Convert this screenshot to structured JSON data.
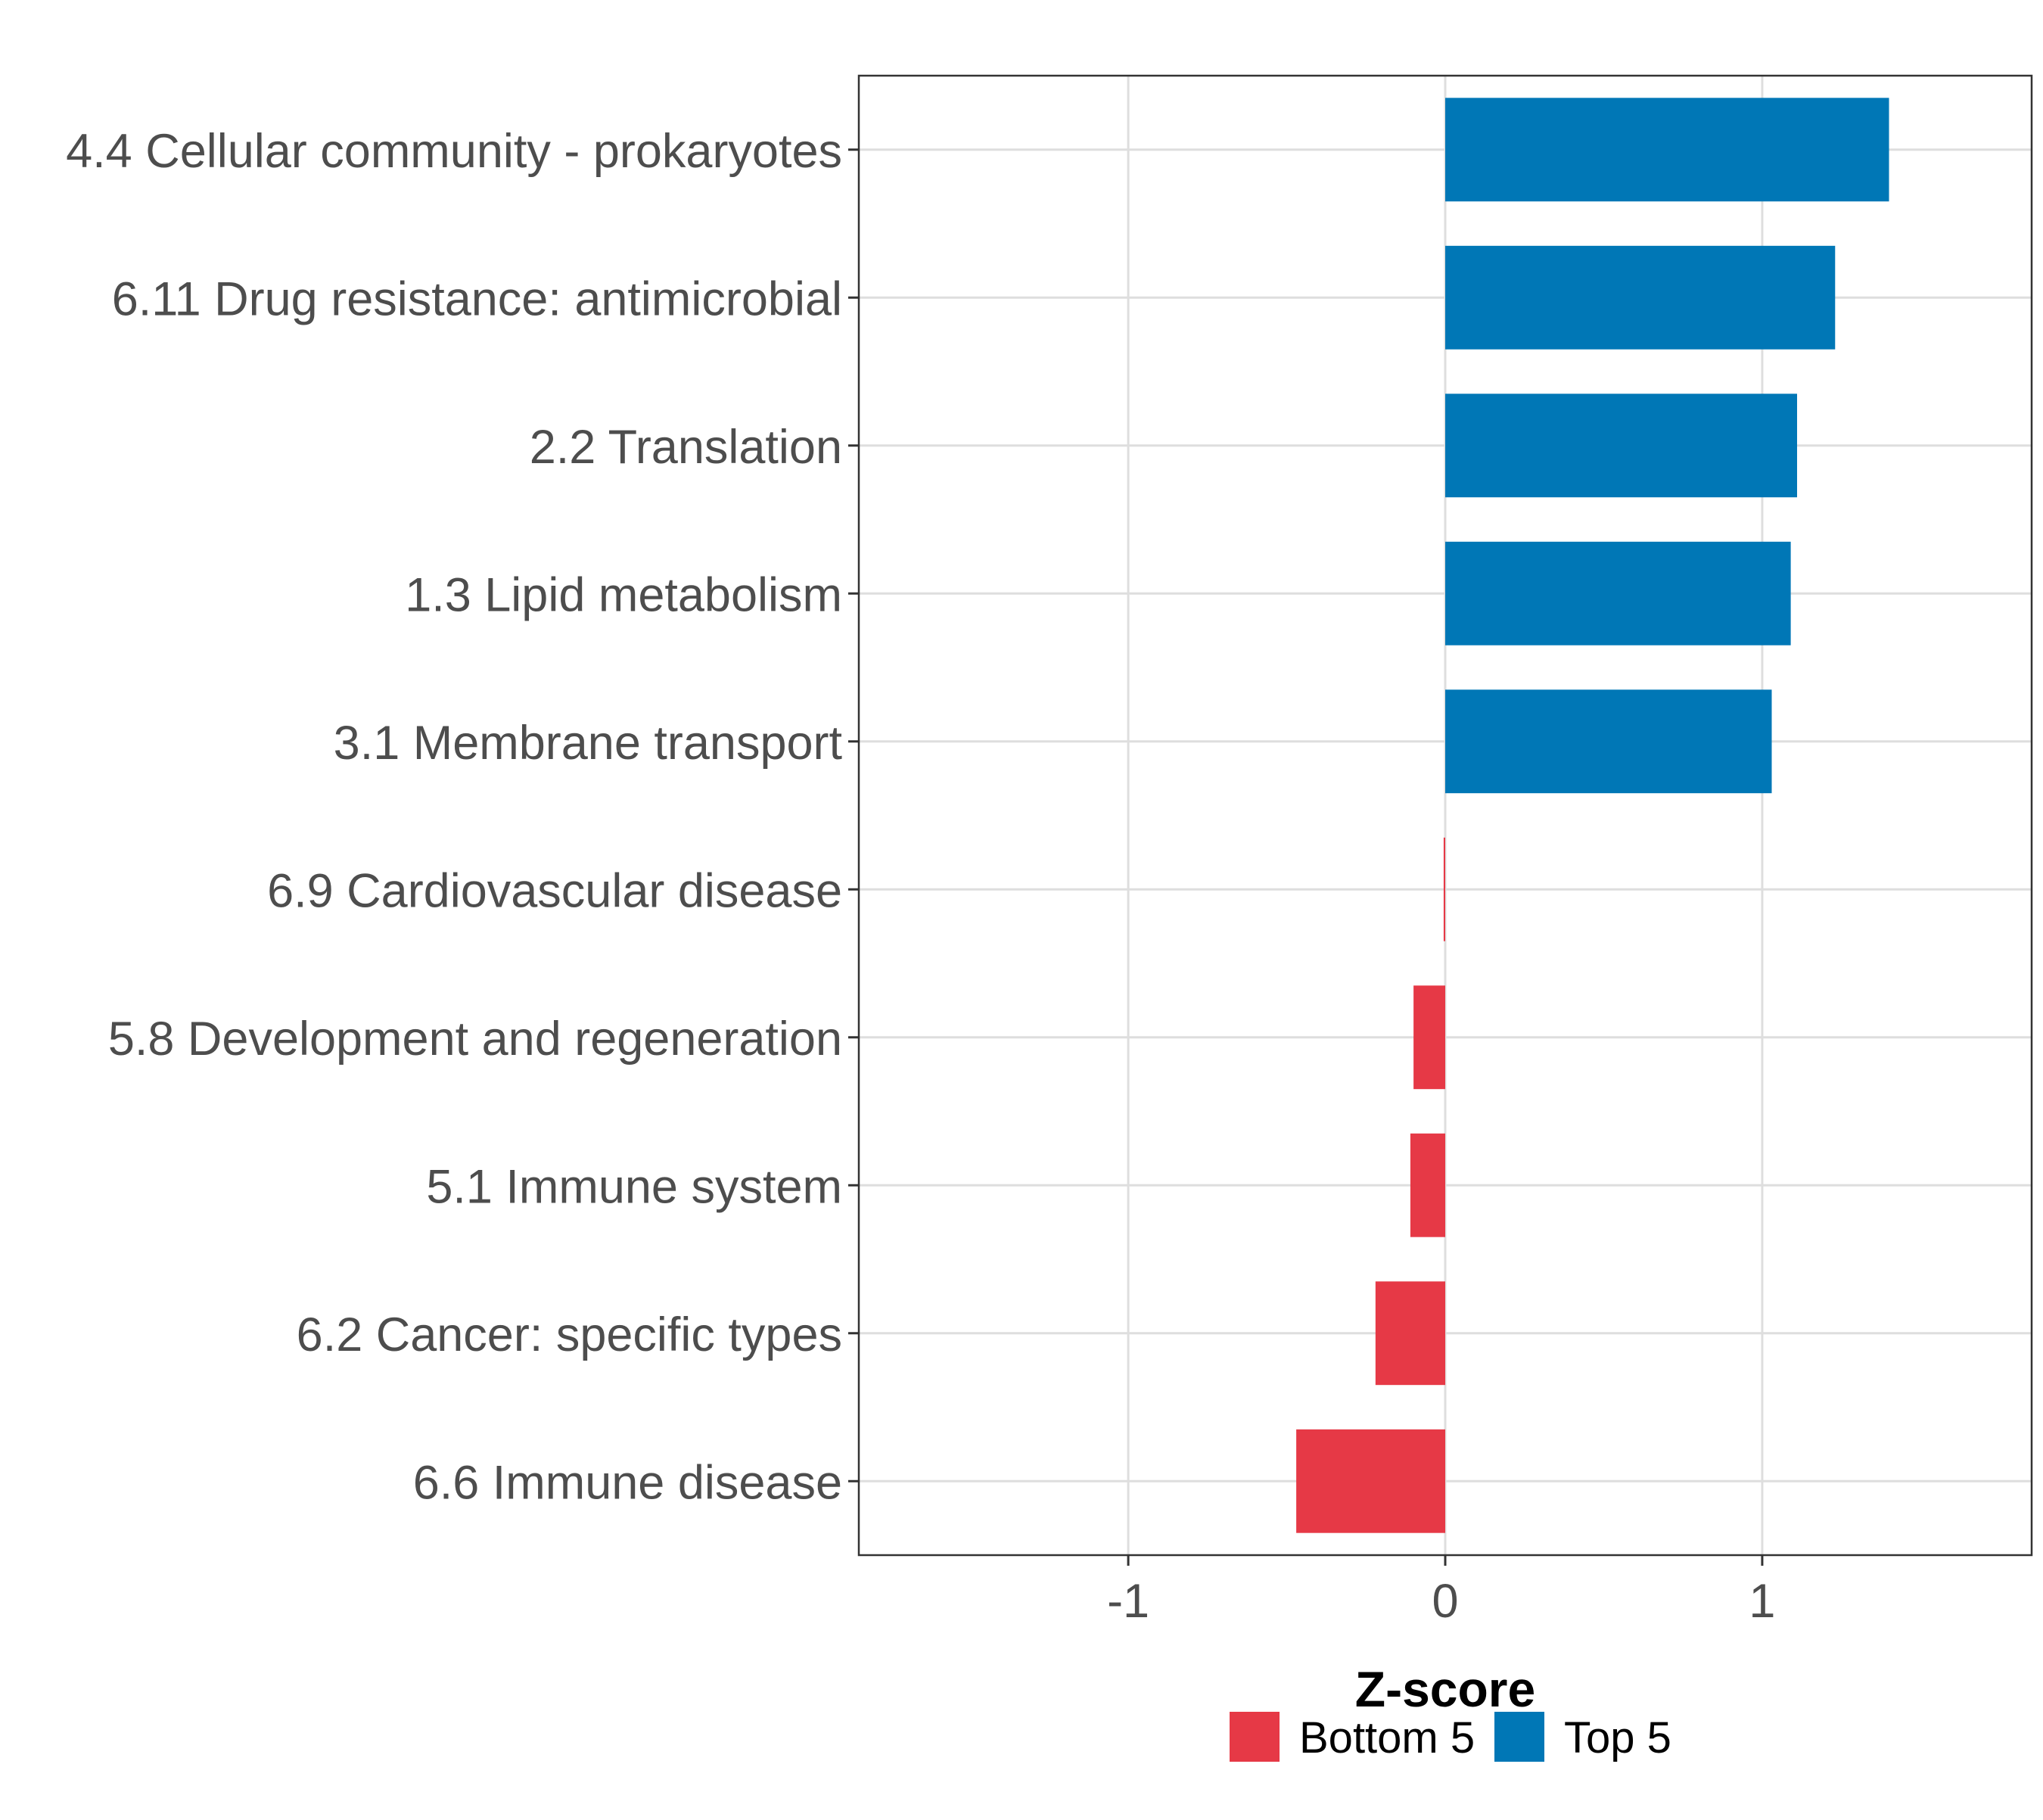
{
  "chart_data": {
    "type": "bar",
    "orientation": "horizontal",
    "title": "",
    "xlabel": "Z-score",
    "ylabel": "",
    "xlim": [
      -1.85,
      1.85
    ],
    "x_ticks": [
      -1,
      0,
      1
    ],
    "x_tick_labels": [
      "-1",
      "0",
      "1"
    ],
    "grid": true,
    "legend_position": "bottom",
    "legend": [
      {
        "name": "Bottom 5",
        "color": "#E63946"
      },
      {
        "name": "Top 5",
        "color": "#0077B6"
      }
    ],
    "categories": [
      "4.4 Cellular community - prokaryotes",
      "6.11 Drug resistance: antimicrobial",
      "2.2 Translation",
      "1.3 Lipid metabolism",
      "3.1 Membrane transport",
      "6.9 Cardiovascular disease",
      "5.8 Development and regeneration",
      "5.1 Immune system",
      "6.2 Cancer: specific types",
      "6.6 Immune disease"
    ],
    "values": [
      1.4,
      1.23,
      1.11,
      1.09,
      1.03,
      -0.005,
      -0.1,
      -0.11,
      -0.22,
      -0.47
    ],
    "groups": [
      "Top 5",
      "Top 5",
      "Top 5",
      "Top 5",
      "Top 5",
      "Bottom 5",
      "Bottom 5",
      "Bottom 5",
      "Bottom 5",
      "Bottom 5"
    ]
  }
}
